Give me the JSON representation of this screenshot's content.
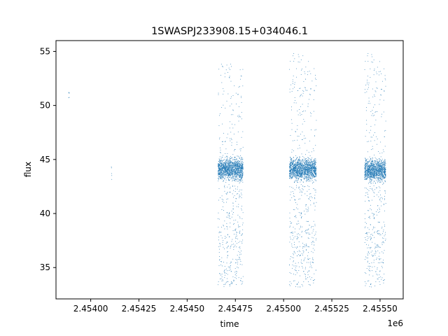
{
  "chart_data": {
    "type": "scatter",
    "title": "1SWASPJ233908.15+034046.1",
    "xlabel": "time",
    "ylabel": "flux",
    "x_offset_label": "1e6",
    "x_scale": 1000000,
    "xlim": [
      2.45382,
      2.45562
    ],
    "ylim": [
      32.1,
      56.0
    ],
    "x_ticks": [
      2.454,
      2.45425,
      2.4545,
      2.45475,
      2.455,
      2.45525,
      2.4555
    ],
    "x_tick_labels": [
      "2.45400",
      "2.45425",
      "2.45450",
      "2.45475",
      "2.45500",
      "2.45525",
      "2.45550"
    ],
    "y_ticks": [
      35,
      40,
      45,
      50,
      55
    ],
    "y_tick_labels": [
      "35",
      "40",
      "45",
      "50",
      "55"
    ],
    "grid": false,
    "marker_color": "#1f77b4",
    "series": [
      {
        "clusters": [
          {
            "x_range": [
              2.453885,
              2.45389
            ],
            "y_center": 50.8,
            "y_spread": 0.6,
            "count": 6
          },
          {
            "x_range": [
              2.454105,
              2.45411
            ],
            "y_center": 43.9,
            "y_spread": 0.8,
            "count": 5
          },
          {
            "x_range": [
              2.45466,
              2.45479
            ],
            "y_center": 44.1,
            "y_spread": 0.9,
            "count": 1800,
            "outlier_low": 33.2,
            "outlier_high": 54.0
          },
          {
            "x_range": [
              2.45503,
              2.45517
            ],
            "y_center": 44.1,
            "y_spread": 0.9,
            "count": 2000,
            "outlier_low": 33.2,
            "outlier_high": 54.8
          },
          {
            "x_range": [
              2.45542,
              2.45553
            ],
            "y_center": 44.0,
            "y_spread": 0.9,
            "count": 1600,
            "outlier_low": 33.2,
            "outlier_high": 54.8
          }
        ]
      }
    ]
  }
}
